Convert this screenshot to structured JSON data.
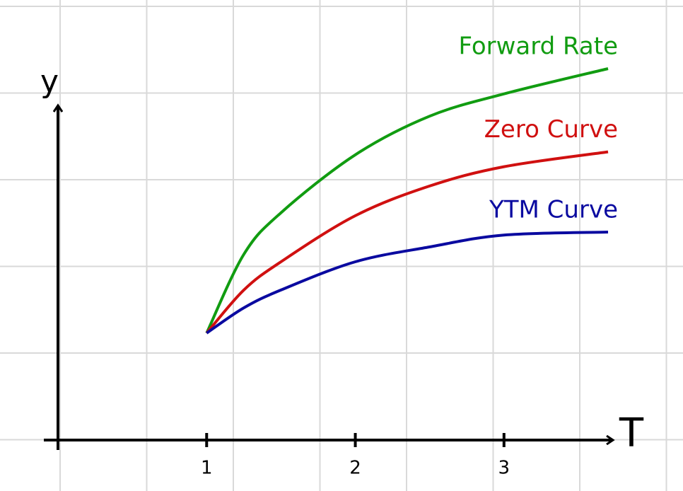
{
  "chart_data": {
    "type": "line",
    "x_label": "T",
    "y_label": "y",
    "x": [
      1,
      1.25,
      1.5,
      2,
      2.5,
      3,
      3.7
    ],
    "series": [
      {
        "name": "Forward Rate",
        "color": "#119c11",
        "values": [
          0.72,
          1.25,
          1.53,
          1.92,
          2.18,
          2.33,
          2.5
        ]
      },
      {
        "name": "Zero Curve",
        "color": "#d01010",
        "values": [
          0.72,
          1.01,
          1.2,
          1.51,
          1.71,
          1.84,
          1.94
        ]
      },
      {
        "name": "YTM Curve",
        "color": "#0a0aa0",
        "values": [
          0.72,
          0.89,
          1.01,
          1.2,
          1.3,
          1.38,
          1.4
        ]
      }
    ],
    "xlim": [
      0,
      3.7
    ],
    "ylim": [
      0,
      2.6
    ],
    "xticks": [
      1,
      2,
      3
    ]
  }
}
